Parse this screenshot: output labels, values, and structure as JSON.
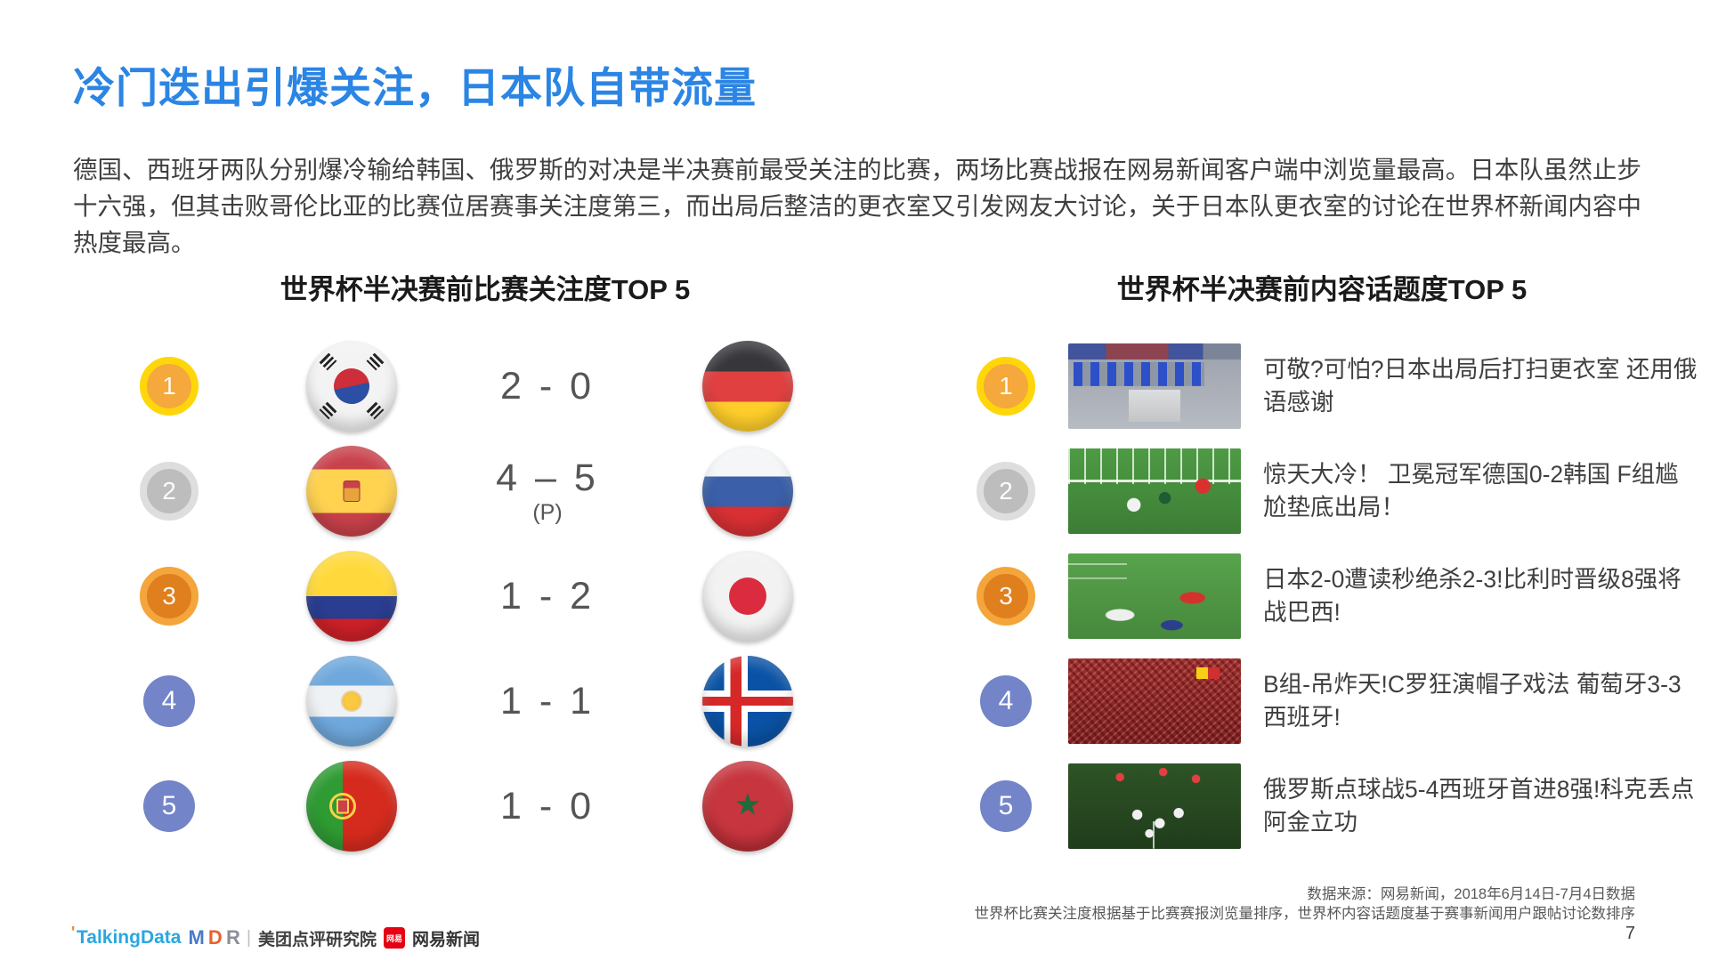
{
  "slide": {
    "title": "冷门迭出引爆关注，日本队自带流量",
    "body": "德国、西班牙两队分别爆冷输给韩国、俄罗斯的对决是半决赛前最受关注的比赛，两场比赛战报在网易新闻客户端中浏览量最高。日本队虽然止步十六强，但其击败哥伦比亚的比赛位居赛事关注度第三，而出局后整洁的更衣室又引发网友大讨论，关于日本队更衣室的讨论在世界杯新闻内容中热度最高。",
    "page_number": "7"
  },
  "colors": {
    "accent_blue": "#2B85E4",
    "rank_circle_blue": "#7384C8",
    "gold": "#FFD60A",
    "silver": "#DEDEDE",
    "bronze": "#F4A53B",
    "ribbon_red": "#F25024"
  },
  "match_ranking": {
    "title": "世界杯半决赛前比赛关注度TOP 5",
    "items": [
      {
        "rank": "1",
        "home_flag": "south-korea",
        "score": "2 - 0",
        "note": "",
        "away_flag": "germany"
      },
      {
        "rank": "2",
        "home_flag": "spain",
        "score": "4 – 5",
        "note": "(P)",
        "away_flag": "russia"
      },
      {
        "rank": "3",
        "home_flag": "colombia",
        "score": "1 - 2",
        "note": "",
        "away_flag": "japan"
      },
      {
        "rank": "4",
        "home_flag": "argentina",
        "score": "1 - 1",
        "note": "",
        "away_flag": "iceland"
      },
      {
        "rank": "5",
        "home_flag": "portugal",
        "score": "1 - 0",
        "note": "",
        "away_flag": "morocco"
      }
    ]
  },
  "topic_ranking": {
    "title": "世界杯半决赛前内容话题度TOP 5",
    "items": [
      {
        "rank": "1",
        "photo": "japan-locker-room",
        "title": "可敬?可怕?日本出局后打扫更衣室 还用俄语感谢"
      },
      {
        "rank": "2",
        "photo": "germany-korea-goal",
        "title": "惊天大冷！ 卫冕冠军德国0-2韩国 F组尴尬垫底出局！"
      },
      {
        "rank": "3",
        "photo": "japan-belgium-players",
        "title": "日本2-0遭读秒绝杀2-3!比利时晋级8强将战巴西!"
      },
      {
        "rank": "4",
        "photo": "spain-fans-crowd",
        "title": "B组-吊炸天!C罗狂演帽子戏法 葡萄牙3-3西班牙!"
      },
      {
        "rank": "5",
        "photo": "russia-celebration",
        "title": "俄罗斯点球战5-4西班牙首进8强!科克丢点阿金立功"
      }
    ]
  },
  "footer": {
    "source_line1": "数据来源：网易新闻，2018年6月14日-7月4日数据",
    "source_line2": "世界杯比赛关注度根据基于比赛赛报浏览量排序，世界杯内容话题度基于赛事新闻用户跟帖讨论数排序",
    "logos": {
      "talkingdata_tick": "'",
      "talkingdata": "TalkingData",
      "mdr_letters": [
        "M",
        "D",
        "R"
      ],
      "divider": "|",
      "meituan": "美团点评研究院",
      "netease_badge": "网易",
      "netease": "网易新闻"
    }
  }
}
